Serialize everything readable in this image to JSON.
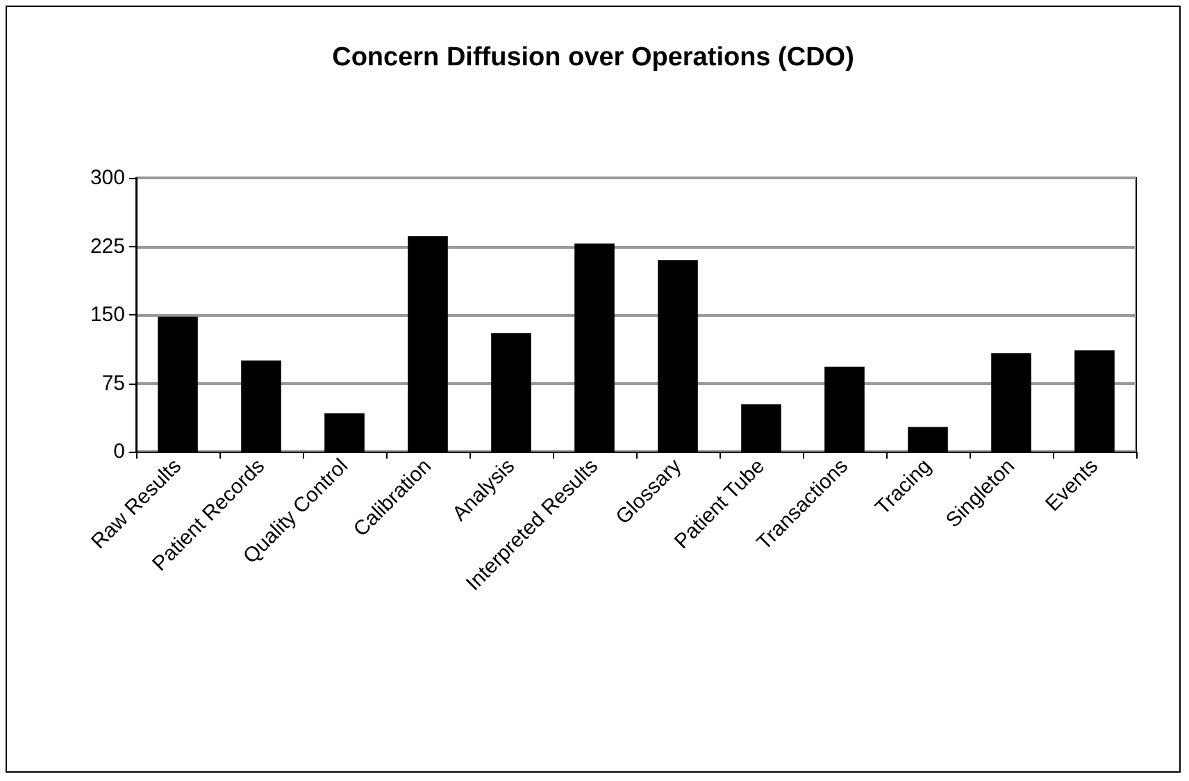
{
  "chart_data": {
    "type": "bar",
    "title": "Concern Diffusion over Operations (CDO)",
    "categories": [
      "Raw Results",
      "Patient Records",
      "Quality Control",
      "Calibration",
      "Analysis",
      "Interpreted Results",
      "Glossary",
      "Patient Tube",
      "Transactions",
      "Tracing",
      "Singleton",
      "Events"
    ],
    "values": [
      148,
      100,
      42,
      236,
      130,
      228,
      210,
      52,
      93,
      27,
      108,
      111
    ],
    "color": "#000000",
    "ylim": [
      0,
      300
    ],
    "yticks": [
      0,
      75,
      150,
      225,
      300
    ],
    "grid": "y"
  }
}
